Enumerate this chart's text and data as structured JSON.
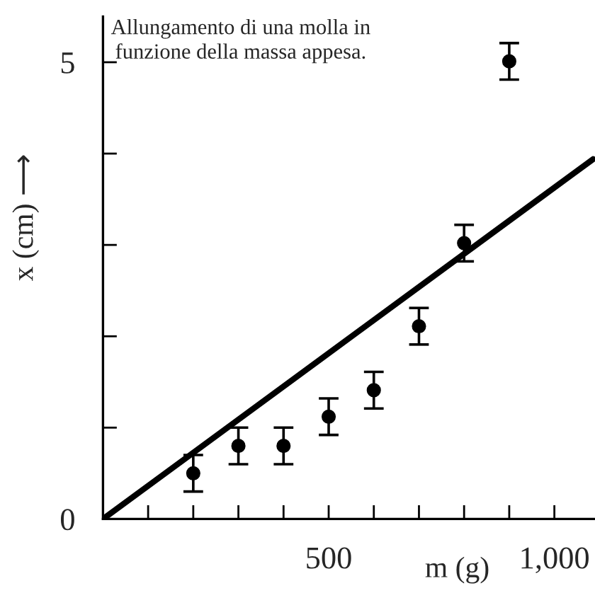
{
  "chart_data": {
    "type": "scatter",
    "title": "Allungamento di una molla in\nfunzione della massa appesa.",
    "xlabel": "m (g)",
    "ylabel": "x (cm) ⟶",
    "x": [
      200,
      300,
      400,
      500,
      600,
      700,
      800,
      900
    ],
    "series": [
      {
        "color": "#000000",
        "marker": "circle",
        "values": [
          0.5,
          0.8,
          0.8,
          1.12,
          1.41,
          2.11,
          3.02,
          5.01
        ],
        "errors": [
          0.2,
          0.2,
          0.2,
          0.2,
          0.2,
          0.2,
          0.2,
          0.2
        ]
      },
      {
        "type": "line",
        "color": "#000000",
        "x": [
          0,
          1086
        ],
        "values": [
          0,
          3.94
        ]
      }
    ],
    "xlim": [
      0,
      1090
    ],
    "ylim": [
      0,
      5.5
    ],
    "xticks": [
      {
        "value": 0,
        "label": null
      },
      {
        "value": 100,
        "label": null
      },
      {
        "value": 200,
        "label": null
      },
      {
        "value": 300,
        "label": null
      },
      {
        "value": 400,
        "label": null
      },
      500,
      {
        "value": 600,
        "label": null
      },
      {
        "value": 700,
        "label": null
      },
      {
        "value": 800,
        "label": null
      },
      {
        "value": 900,
        "label": null
      },
      {
        "value": 1000,
        "label": "1,000"
      }
    ],
    "yticks": [
      0,
      {
        "value": 1,
        "label": null
      },
      {
        "value": 2,
        "label": null
      },
      {
        "value": 3,
        "label": null
      },
      {
        "value": 4,
        "label": null
      },
      5
    ],
    "grid": false,
    "legend": false
  }
}
